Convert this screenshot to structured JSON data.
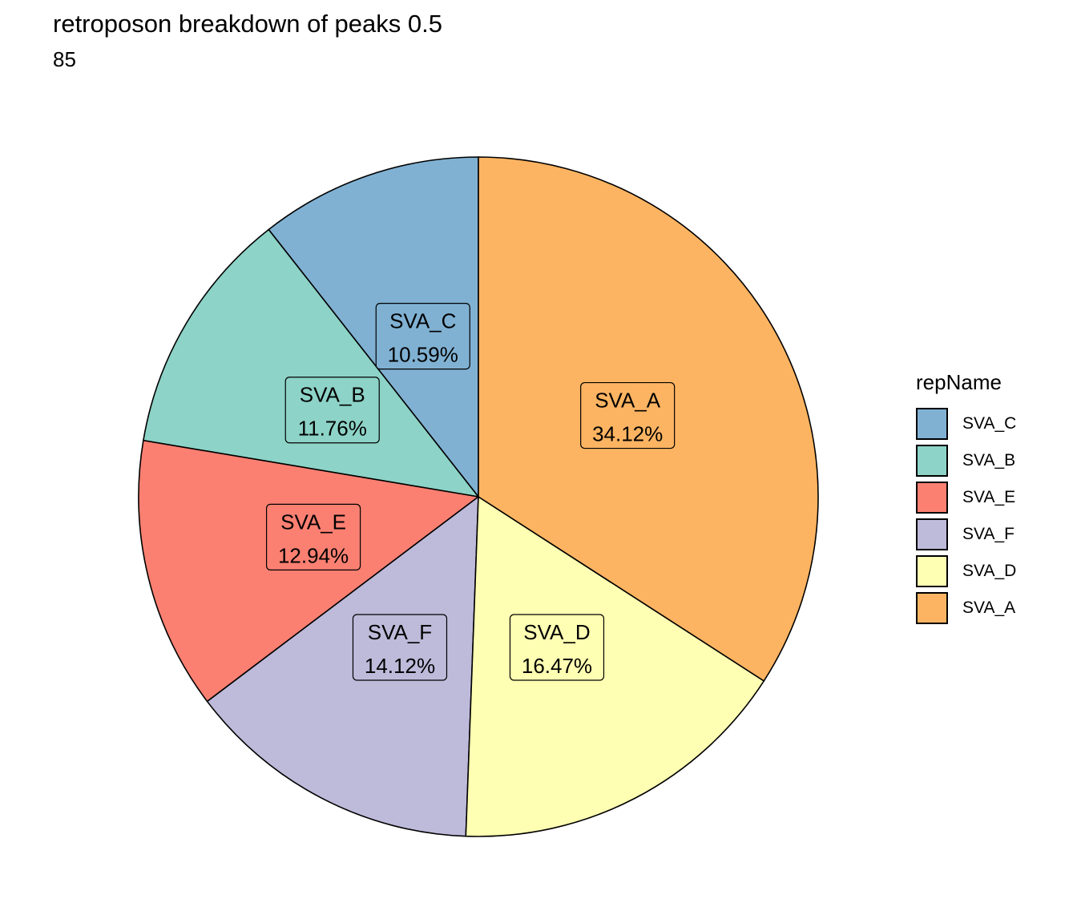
{
  "chart_data": {
    "type": "pie",
    "title": "retroposon breakdown of peaks 0.5",
    "subtitle": "85",
    "legend_title": "repName",
    "legend_position": "right",
    "slices": [
      {
        "label": "SVA_C",
        "value": 10.59,
        "value_label": "10.59%",
        "color": "#80B1D3"
      },
      {
        "label": "SVA_B",
        "value": 11.76,
        "value_label": "11.76%",
        "color": "#8DD3C7"
      },
      {
        "label": "SVA_E",
        "value": 12.94,
        "value_label": "12.94%",
        "color": "#FB8072"
      },
      {
        "label": "SVA_F",
        "value": 14.12,
        "value_label": "14.12%",
        "color": "#BEBADA"
      },
      {
        "label": "SVA_D",
        "value": 16.47,
        "value_label": "16.47%",
        "color": "#FFFFB3"
      },
      {
        "label": "SVA_A",
        "value": 34.12,
        "value_label": "34.12%",
        "color": "#FDB462"
      }
    ]
  }
}
